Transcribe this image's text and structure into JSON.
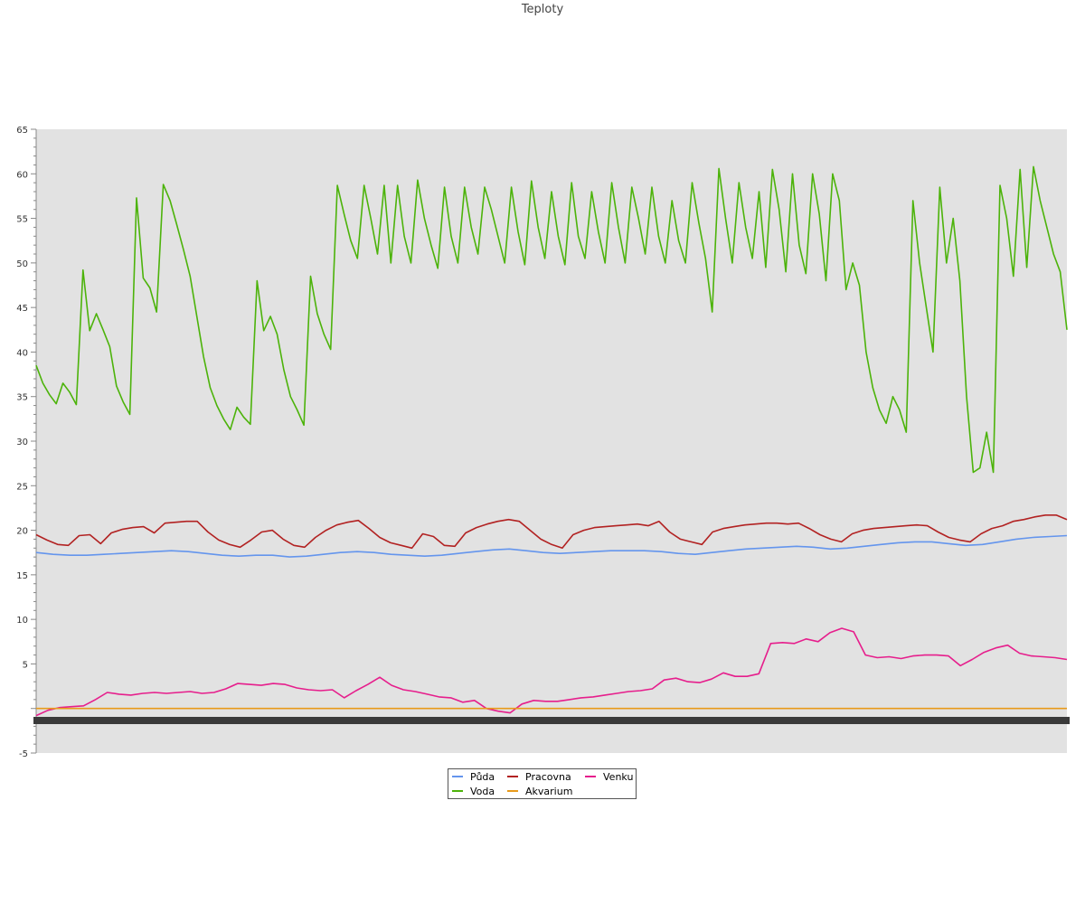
{
  "chart_data": {
    "type": "line",
    "title": "Teploty",
    "xlabel": "",
    "ylabel": "",
    "ylim": [
      -5,
      65
    ],
    "yticks": [
      -5,
      5,
      10,
      15,
      20,
      25,
      30,
      35,
      40,
      45,
      50,
      55,
      60,
      65
    ],
    "grid": false,
    "legend_position": "bottom",
    "x_points": 116,
    "series": [
      {
        "name": "Půda",
        "color": "#6495ed",
        "values": [
          17.5,
          17.3,
          17.2,
          17.2,
          17.3,
          17.4,
          17.5,
          17.6,
          17.7,
          17.6,
          17.4,
          17.2,
          17.1,
          17.2,
          17.2,
          17.0,
          17.1,
          17.3,
          17.5,
          17.6,
          17.5,
          17.3,
          17.2,
          17.1,
          17.2,
          17.4,
          17.6,
          17.8,
          17.9,
          17.7,
          17.5,
          17.4,
          17.5,
          17.6,
          17.7,
          17.7,
          17.7,
          17.6,
          17.4,
          17.3,
          17.5,
          17.7,
          17.9,
          18.0,
          18.1,
          18.2,
          18.1,
          17.9,
          18.0,
          18.2,
          18.4,
          18.6,
          18.7,
          18.7,
          18.5,
          18.3,
          18.4,
          18.7,
          19.0,
          19.2,
          19.3,
          19.4
        ]
      },
      {
        "name": "Pracovna",
        "color": "#b22222",
        "values": [
          19.5,
          18.9,
          18.4,
          18.3,
          19.4,
          19.5,
          18.5,
          19.7,
          20.1,
          20.3,
          20.4,
          19.7,
          20.8,
          20.9,
          21.0,
          21.0,
          19.8,
          18.9,
          18.4,
          18.1,
          18.9,
          19.8,
          20.0,
          19.0,
          18.3,
          18.1,
          19.2,
          20.0,
          20.6,
          20.9,
          21.1,
          20.2,
          19.2,
          18.6,
          18.3,
          18.0,
          19.6,
          19.3,
          18.3,
          18.2,
          19.7,
          20.3,
          20.7,
          21.0,
          21.2,
          21.0,
          20.0,
          19.0,
          18.4,
          18.0,
          19.5,
          20.0,
          20.3,
          20.4,
          20.5,
          20.6,
          20.7,
          20.5,
          21.0,
          19.8,
          19.0,
          18.7,
          18.4,
          19.8,
          20.2,
          20.4,
          20.6,
          20.7,
          20.8,
          20.8,
          20.7,
          20.8,
          20.2,
          19.5,
          19.0,
          18.7,
          19.6,
          20.0,
          20.2,
          20.3,
          20.4,
          20.5,
          20.6,
          20.5,
          19.8,
          19.2,
          18.9,
          18.7,
          19.6,
          20.2,
          20.5,
          21.0,
          21.2,
          21.5,
          21.7,
          21.7,
          21.2
        ]
      },
      {
        "name": "Venku",
        "color": "#e61e8c",
        "values": [
          -0.8,
          -0.2,
          0.1,
          0.2,
          0.3,
          1.0,
          1.8,
          1.6,
          1.5,
          1.7,
          1.8,
          1.7,
          1.8,
          1.9,
          1.7,
          1.8,
          2.2,
          2.8,
          2.7,
          2.6,
          2.8,
          2.7,
          2.3,
          2.1,
          2.0,
          2.1,
          1.2,
          2.0,
          2.7,
          3.5,
          2.6,
          2.1,
          1.9,
          1.6,
          1.3,
          1.2,
          0.7,
          0.9,
          0.0,
          -0.3,
          -0.5,
          0.5,
          0.9,
          0.8,
          0.8,
          1.0,
          1.2,
          1.3,
          1.5,
          1.7,
          1.9,
          2.0,
          2.2,
          3.2,
          3.4,
          3.0,
          2.9,
          3.3,
          4.0,
          3.6,
          3.6,
          3.9,
          7.3,
          7.4,
          7.3,
          7.8,
          7.5,
          8.5,
          9.0,
          8.6,
          6.0,
          5.7,
          5.8,
          5.6,
          5.9,
          6.0,
          6.0,
          5.9,
          4.8,
          5.5,
          6.3,
          6.8,
          7.1,
          6.2,
          5.9,
          5.8,
          5.7,
          5.5
        ]
      },
      {
        "name": "Voda",
        "color": "#4cb30a",
        "values": [
          38.5,
          36.5,
          35.2,
          34.2,
          36.5,
          35.5,
          34.1,
          49.2,
          42.4,
          44.3,
          42.5,
          40.6,
          36.2,
          34.4,
          33.0,
          57.3,
          48.3,
          47.2,
          44.5,
          58.8,
          57.0,
          54.3,
          51.5,
          48.5,
          44.0,
          39.5,
          36.0,
          34.0,
          32.5,
          31.3,
          33.8,
          32.7,
          31.9,
          48.0,
          42.4,
          44.0,
          42.0,
          38.0,
          35.0,
          33.5,
          31.8,
          48.5,
          44.3,
          42.0,
          40.3,
          58.7,
          55.5,
          52.5,
          50.5,
          58.7,
          55.0,
          51.0,
          58.7,
          50.0,
          58.7,
          53.0,
          50.0,
          59.3,
          55.0,
          52.0,
          49.4,
          58.5,
          53.0,
          50.0,
          58.5,
          54.0,
          51.0,
          58.5,
          56.0,
          53.0,
          50.0,
          58.5,
          53.5,
          49.8,
          59.2,
          54.0,
          50.5,
          58.0,
          53.0,
          49.8,
          59.0,
          53.0,
          50.5,
          58.0,
          53.5,
          50.0,
          59.0,
          54.0,
          50.0,
          58.5,
          55.0,
          51.0,
          58.5,
          53.0,
          50.0,
          57.0,
          52.5,
          50.0,
          59.0,
          54.5,
          50.5,
          44.5,
          60.6,
          55.0,
          50.0,
          59.0,
          54.0,
          50.5,
          58.0,
          49.5,
          60.5,
          56.0,
          49.0,
          60.0,
          52.0,
          48.8,
          60.0,
          55.5,
          48.0,
          60.0,
          57.0,
          47.0,
          50.0,
          47.5,
          40.0,
          36.0,
          33.5,
          32.0,
          35.0,
          33.5,
          31.0,
          57.0,
          50.0,
          45.0,
          40.0,
          58.5,
          50.0,
          55.0,
          48.0,
          35.0,
          26.5,
          27.0,
          31.0,
          26.5,
          58.7,
          55.0,
          48.5,
          60.5,
          49.5,
          60.8,
          57.0,
          54.0,
          51.0,
          49.0,
          42.5
        ]
      },
      {
        "name": "Akvarium",
        "color": "#e89a1a",
        "values": [
          0.0,
          0.0
        ]
      }
    ]
  }
}
